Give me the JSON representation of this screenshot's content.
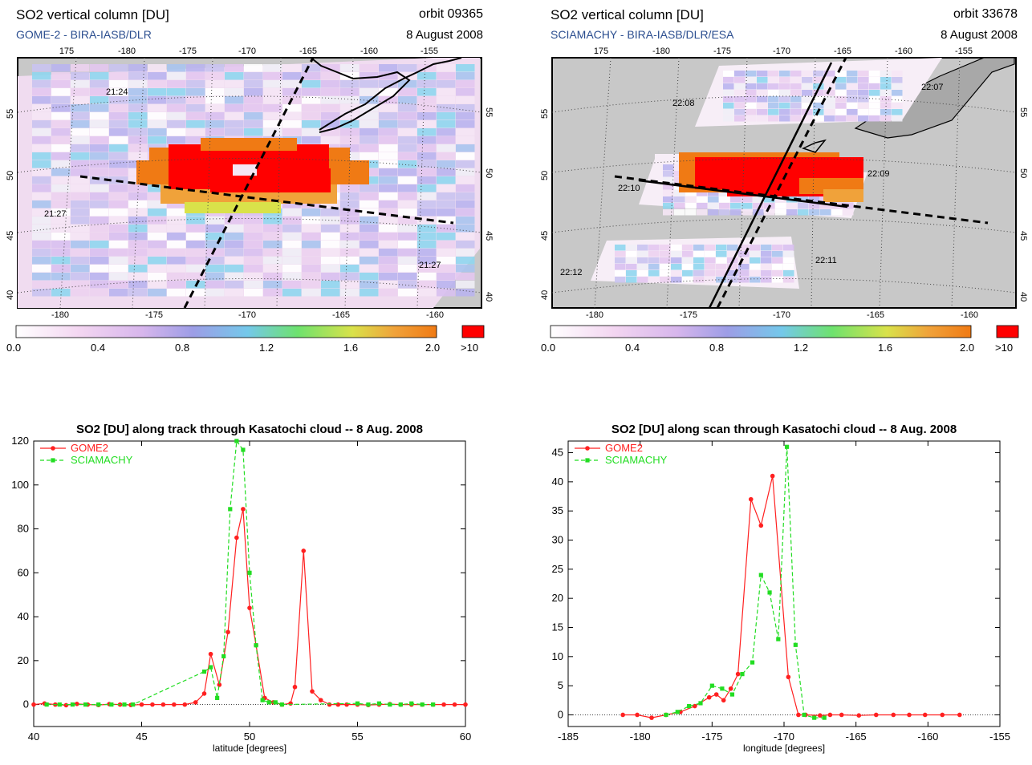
{
  "maps": [
    {
      "title": "SO2 vertical column [DU]",
      "subtitle": "GOME-2  -  BIRA-IASB/DLR",
      "orbit": "orbit 09365",
      "date": "8 August 2008",
      "top_lon_ticks": [
        "175",
        "-180",
        "-175",
        "-170",
        "-165",
        "-160",
        "-155"
      ],
      "bottom_lon_ticks": [
        "-180",
        "-175",
        "-170",
        "-165",
        "-160"
      ],
      "lat_ticks": [
        "40",
        "45",
        "50",
        "55"
      ],
      "time_labels": [
        "21:24",
        "21:27",
        "21:27"
      ]
    },
    {
      "title": "SO2 vertical column [DU]",
      "subtitle": "SCIAMACHY  -  BIRA-IASB/DLR/ESA",
      "orbit": "orbit 33678",
      "date": "8 August 2008",
      "top_lon_ticks": [
        "175",
        "-180",
        "-175",
        "-170",
        "-165",
        "-160",
        "-155"
      ],
      "bottom_lon_ticks": [
        "-180",
        "-175",
        "-170",
        "-165",
        "-160"
      ],
      "lat_ticks": [
        "40",
        "45",
        "50",
        "55"
      ],
      "time_labels": [
        "22:07",
        "22:08",
        "22:09",
        "22:10",
        "22:11",
        "22:12"
      ]
    }
  ],
  "colorbar": {
    "labels": [
      "0.0",
      "0.4",
      "0.8",
      "1.2",
      "1.6",
      "2.0"
    ],
    "over_label": ">10",
    "colors": [
      "#ffffff",
      "#f3d6f1",
      "#d7b6ec",
      "#9d9de6",
      "#74c8ea",
      "#6ee26e",
      "#d9e24a",
      "#f0a23a",
      "#f07a14"
    ],
    "over_color": "#ff0000"
  },
  "chart_data": [
    {
      "type": "line",
      "title": "SO2 [DU] along track through Kasatochi cloud -- 8 Aug. 2008",
      "xlabel": "latitude [degrees]",
      "ylabel": "",
      "xlim": [
        40,
        60
      ],
      "ylim": [
        -10,
        120
      ],
      "xticks": [
        40,
        45,
        50,
        55,
        60
      ],
      "yticks": [
        0,
        20,
        40,
        60,
        80,
        100,
        120
      ],
      "legend": "top-left",
      "series": [
        {
          "name": "GOME2",
          "color": "#ff2020",
          "marker": "circle",
          "x": [
            40.0,
            40.5,
            41.0,
            41.5,
            42.0,
            42.5,
            43.0,
            43.5,
            44.0,
            44.5,
            45.0,
            45.5,
            46.0,
            46.5,
            47.0,
            47.5,
            47.9,
            48.2,
            48.6,
            49.0,
            49.4,
            49.7,
            50.0,
            50.3,
            50.7,
            51.1,
            51.5,
            51.9,
            52.1,
            52.5,
            52.9,
            53.3,
            53.7,
            54.1,
            54.5,
            55.0,
            55.5,
            56.0,
            56.5,
            57.0,
            57.5,
            58.0,
            58.5,
            59.0,
            59.5,
            60.0
          ],
          "values": [
            0,
            0.5,
            0,
            -0.3,
            0.3,
            0,
            -0.2,
            0.2,
            0,
            -0.2,
            0,
            0,
            0,
            0,
            0,
            1,
            5,
            23,
            9,
            33,
            76,
            89,
            44,
            27,
            3,
            1,
            0,
            0.5,
            8,
            70,
            6,
            2,
            0,
            0,
            0,
            0,
            -0.2,
            0,
            0.2,
            0,
            0,
            0,
            0,
            0,
            0,
            0
          ]
        },
        {
          "name": "SCIAMACHY",
          "color": "#22dd22",
          "marker": "square",
          "x": [
            40.6,
            41.2,
            41.8,
            42.4,
            43.0,
            43.6,
            44.2,
            44.6,
            47.9,
            48.2,
            48.5,
            48.8,
            49.1,
            49.4,
            49.7,
            50.0,
            50.3,
            50.6,
            50.9,
            51.2,
            51.5,
            55.0,
            55.5,
            56.0,
            56.5,
            57.0,
            57.5,
            58.0,
            58.5
          ],
          "values": [
            0,
            0,
            0,
            0,
            0,
            0,
            0,
            0,
            15,
            17,
            3,
            22,
            89,
            120,
            116,
            60,
            27,
            2,
            1,
            1,
            0,
            0.5,
            0,
            0.5,
            0,
            0,
            0.5,
            0,
            0
          ]
        }
      ]
    },
    {
      "type": "line",
      "title": "SO2 [DU] along scan through Kasatochi cloud -- 8 Aug. 2008",
      "xlabel": "longitude [degrees]",
      "ylabel": "",
      "xlim": [
        -185,
        -155
      ],
      "ylim": [
        -2,
        47
      ],
      "xticks": [
        -185,
        -180,
        -175,
        -170,
        -165,
        -160,
        -155
      ],
      "yticks": [
        0,
        5,
        10,
        15,
        20,
        25,
        30,
        35,
        40,
        45
      ],
      "legend": "top-left",
      "series": [
        {
          "name": "GOME2",
          "color": "#ff2020",
          "marker": "circle",
          "x": [
            -181.2,
            -180.2,
            -179.2,
            -178.2,
            -177.2,
            -176.2,
            -175.2,
            -174.7,
            -174.2,
            -173.7,
            -173.2,
            -172.3,
            -171.6,
            -170.8,
            -169.7,
            -169.0,
            -168.5,
            -167.5,
            -166.8,
            -166.0,
            -164.8,
            -163.6,
            -162.4,
            -161.3,
            -160.2,
            -159.0,
            -157.8
          ],
          "values": [
            0,
            0,
            -0.5,
            0,
            0.5,
            1.5,
            3,
            3.5,
            2.5,
            4.5,
            7,
            37,
            32.5,
            41,
            6.5,
            0,
            0,
            -0.1,
            0,
            0,
            -0.1,
            0,
            0,
            0,
            0,
            0,
            0
          ]
        },
        {
          "name": "SCIAMACHY",
          "color": "#22dd22",
          "marker": "square",
          "x": [
            -178.2,
            -177.4,
            -176.6,
            -175.8,
            -175.0,
            -174.3,
            -173.6,
            -172.9,
            -172.2,
            -171.6,
            -171.0,
            -170.4,
            -169.8,
            -169.2,
            -168.6,
            -167.9,
            -167.2
          ],
          "values": [
            0,
            0.5,
            1.5,
            2,
            5,
            4.5,
            3.5,
            7,
            9,
            24,
            21,
            13,
            46,
            12,
            0,
            -0.5,
            -0.5
          ]
        }
      ]
    }
  ]
}
